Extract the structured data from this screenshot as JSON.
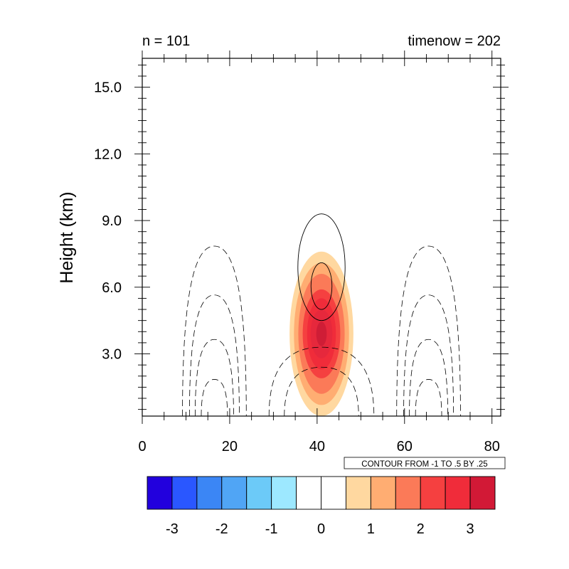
{
  "chart_data": {
    "type": "contour",
    "title_left": "n = 101",
    "title_right": "timenow = 202",
    "xlabel": "",
    "ylabel": "Height (km)",
    "xlim": [
      0,
      82
    ],
    "ylim": [
      0.2,
      16.3
    ],
    "x_ticks": [
      "0",
      "20",
      "40",
      "60",
      "80"
    ],
    "x_tick_values": [
      0,
      20,
      40,
      60,
      80
    ],
    "y_ticks": [
      "3.0",
      "6.0",
      "9.0",
      "12.0",
      "15.0"
    ],
    "y_tick_values": [
      3,
      6,
      9,
      12,
      15
    ],
    "info_label": "CONTOUR FROM -1 TO .5 BY .25",
    "filled_field": {
      "center": [
        41,
        3.9
      ],
      "levels": [
        0.5,
        1.0,
        1.5,
        2.0,
        2.5,
        3.0,
        3.5
      ],
      "colors": [
        "#ffd8a0",
        "#ffad72",
        "#fb7a58",
        "#f54040",
        "#f02c3a",
        "#e6283c",
        "#cf1d36"
      ],
      "half_widths_x": [
        7.3,
        6.3,
        5.3,
        4.3,
        3.3,
        2.5,
        1.2
      ],
      "half_heights_y": [
        3.7,
        3.2,
        2.7,
        2.0,
        1.6,
        1.1,
        0.55
      ]
    },
    "positive_contours": [
      {
        "center": [
          41,
          7.0
        ],
        "half_width": 5.4,
        "top": 9.3,
        "bottom": 4.5
      },
      {
        "center": [
          41,
          6.3
        ],
        "half_width": 2.4,
        "top": 7.1,
        "bottom": 5.0
      }
    ],
    "negative_contours": [
      {
        "center": [
          16.5,
          0.2
        ],
        "half_width": 7.3,
        "top": 7.85
      },
      {
        "center": [
          16.5,
          0.2
        ],
        "half_width": 5.7,
        "top": 5.65
      },
      {
        "center": [
          16.5,
          0.2
        ],
        "half_width": 4.4,
        "top": 3.65
      },
      {
        "center": [
          16.5,
          0.2
        ],
        "half_width": 3.0,
        "top": 1.85
      },
      {
        "center": [
          65.5,
          0.2
        ],
        "half_width": 7.3,
        "top": 7.85
      },
      {
        "center": [
          65.5,
          0.2
        ],
        "half_width": 5.7,
        "top": 5.65
      },
      {
        "center": [
          65.5,
          0.2
        ],
        "half_width": 4.4,
        "top": 3.65
      },
      {
        "center": [
          65.5,
          0.2
        ],
        "half_width": 3.0,
        "top": 1.85
      },
      {
        "center": [
          41,
          0.2
        ],
        "half_width": 12.0,
        "top": 3.3
      },
      {
        "center": [
          41,
          0.2
        ],
        "half_width": 8.5,
        "top": 2.4
      }
    ],
    "colorbar": {
      "colors": [
        "#2200dd",
        "#2a57ff",
        "#3b86f5",
        "#50a5f5",
        "#6ccaf8",
        "#9de8ff",
        "#ffffff",
        "#ffffff",
        "#ffd8a0",
        "#ffad72",
        "#fb7a58",
        "#f54040",
        "#f02c3a",
        "#d21936"
      ],
      "labels": [
        "-3",
        "-2",
        "-1",
        "0",
        "1",
        "2",
        "3"
      ]
    }
  }
}
